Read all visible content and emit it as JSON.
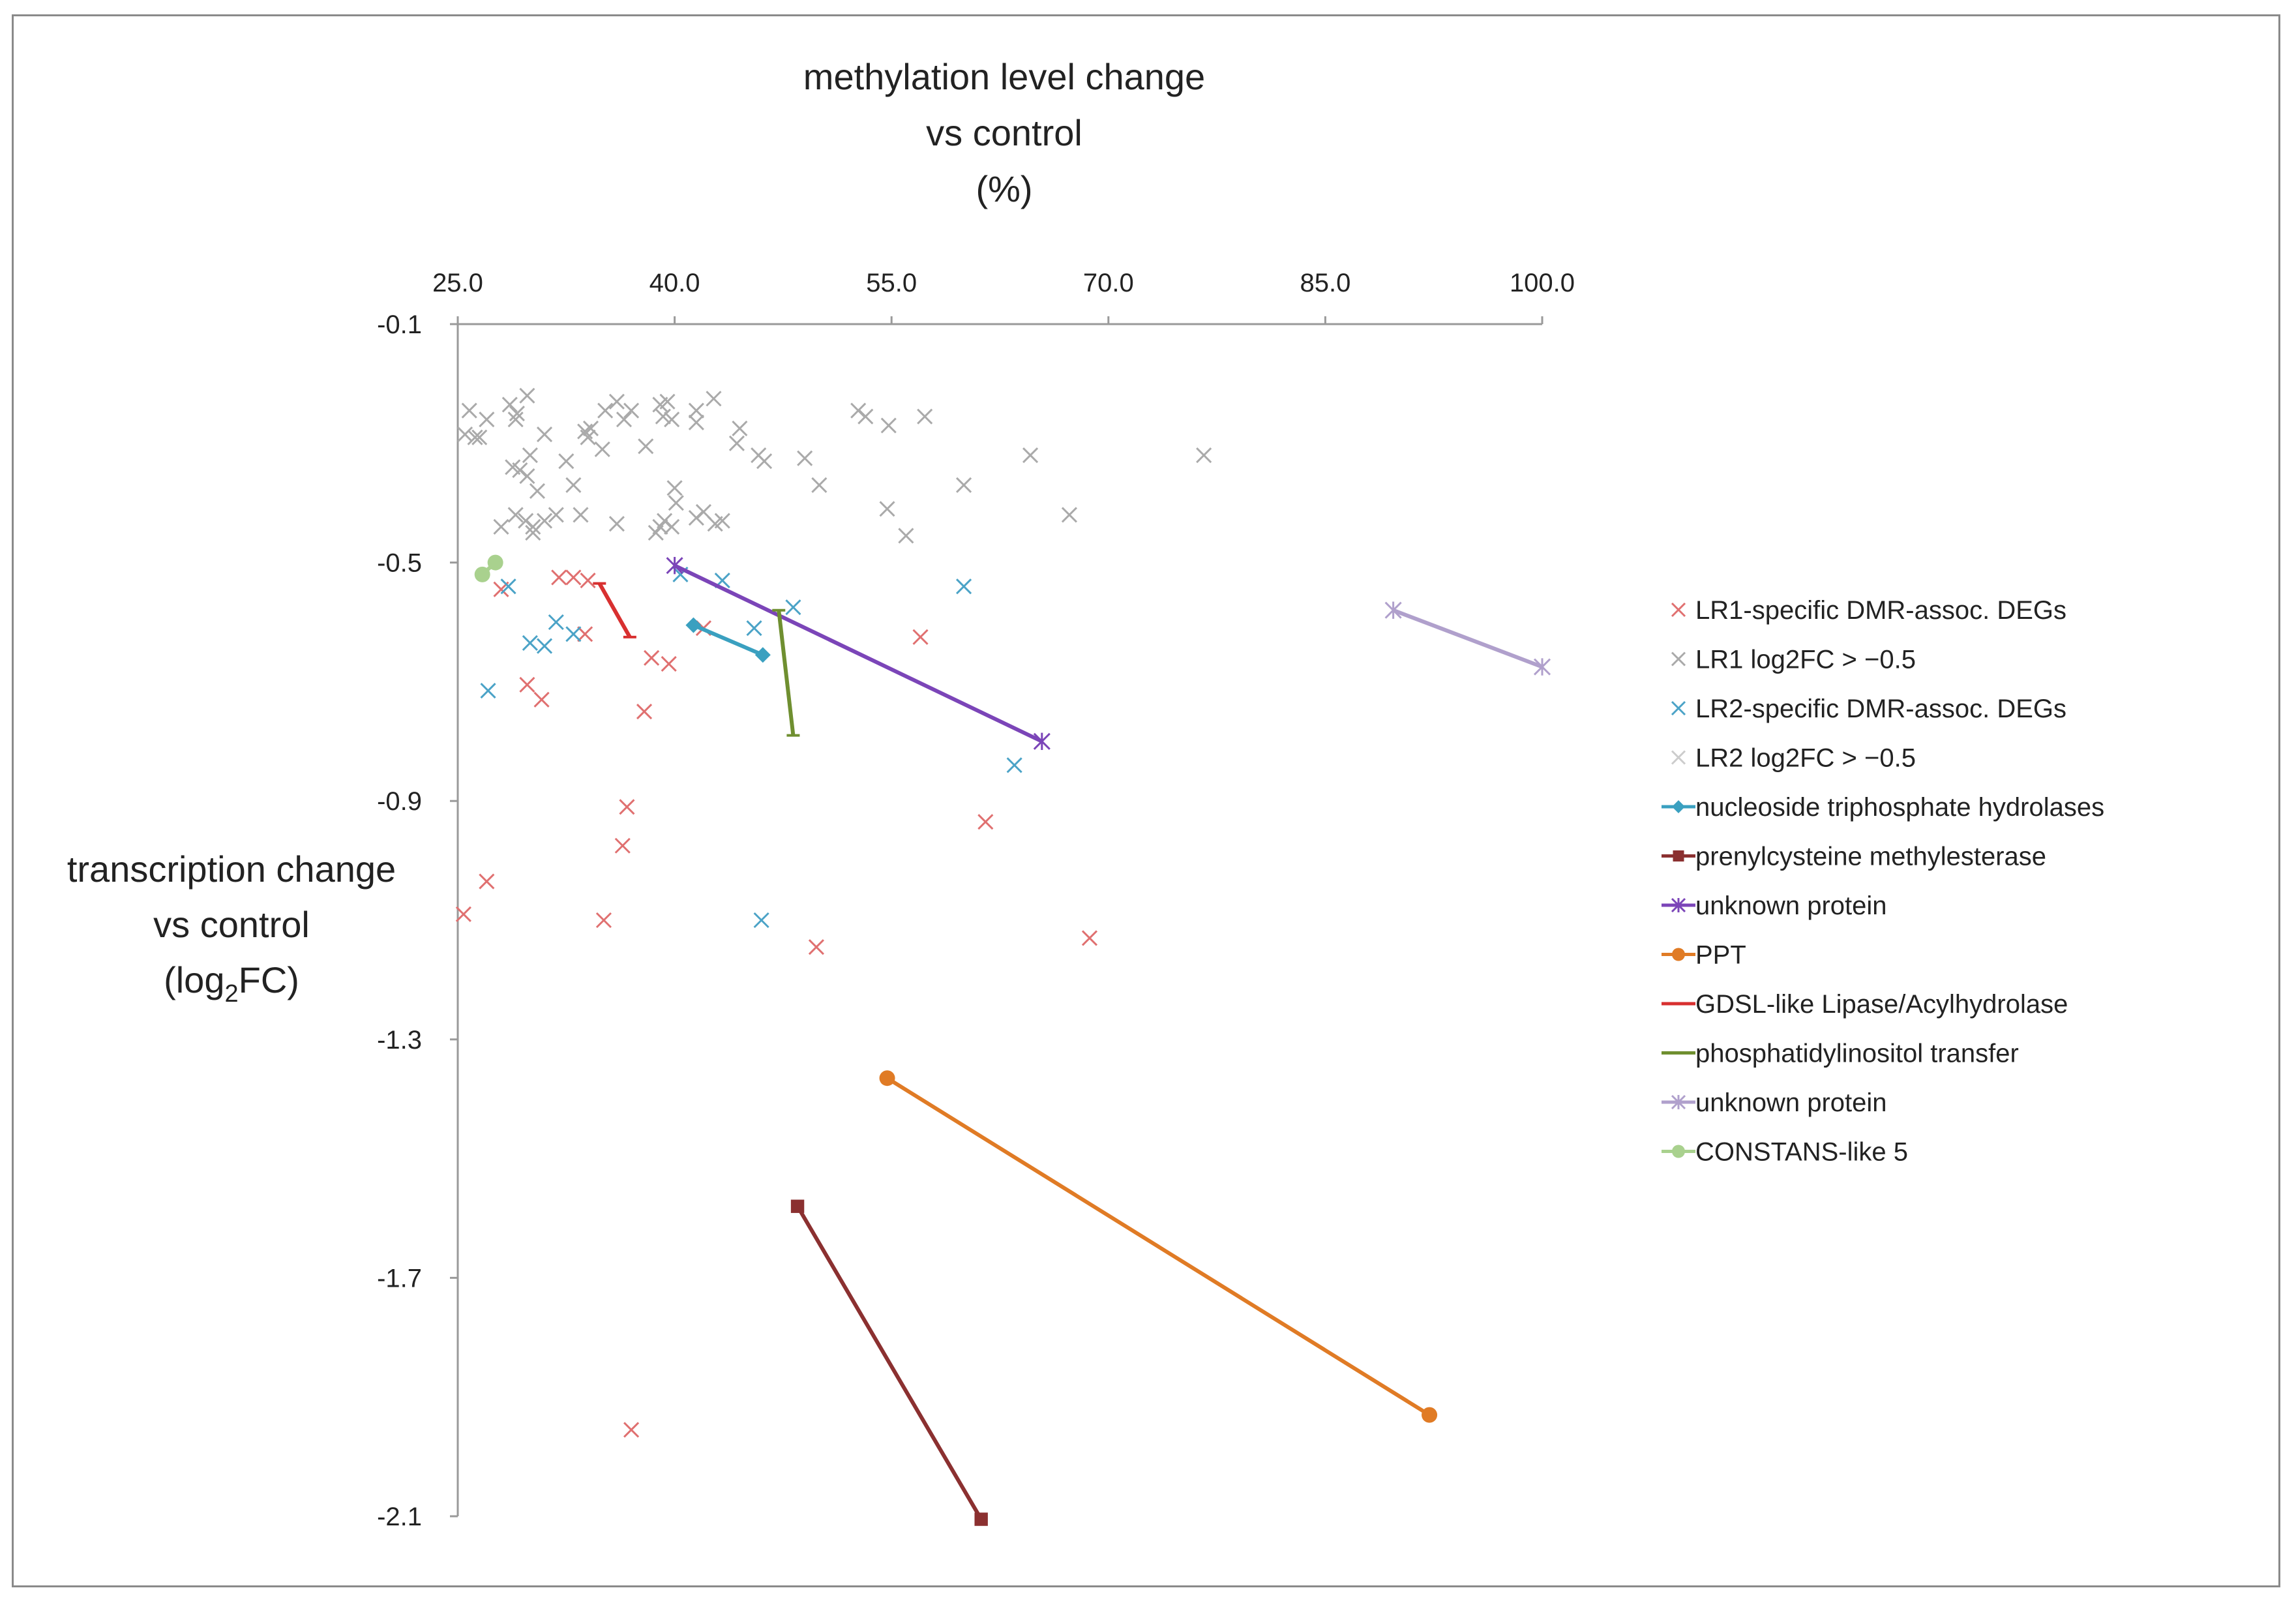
{
  "chart_data": {
    "type": "scatter",
    "title_lines": [
      "methylation level change",
      "vs control",
      "(%)"
    ],
    "ylabel_lines": [
      "transcription change",
      "vs control",
      "(log",
      "2",
      "FC)"
    ],
    "x_axis": {
      "position": "top",
      "min": 25.0,
      "max": 100.0,
      "ticks": [
        25.0,
        40.0,
        55.0,
        70.0,
        85.0,
        100.0
      ],
      "tick_labels": [
        "25.0",
        "40.0",
        "55.0",
        "70.0",
        "85.0",
        "100.0"
      ]
    },
    "y_axis": {
      "min": -2.1,
      "max": -0.1,
      "ticks": [
        -0.1,
        -0.5,
        -0.9,
        -1.3,
        -1.7,
        -2.1
      ],
      "tick_labels": [
        "-0.1",
        "-0.5",
        "-0.9",
        "-1.3",
        "-1.7",
        "-2.1"
      ]
    },
    "legend_position": "right",
    "series": [
      {
        "name": "LR1-specific DMR-assoc. DEGs",
        "marker": "x",
        "color": "#e07070",
        "line": false,
        "x": [
          28.0,
          32.0,
          33.0,
          34.0,
          33.8,
          29.8,
          30.8,
          38.4,
          39.6,
          37.9,
          36.7,
          36.4,
          35.1,
          25.4,
          27.0,
          42.0,
          49.8,
          57.0,
          61.5,
          68.7,
          37.0
        ],
        "y": [
          -0.545,
          -0.525,
          -0.525,
          -0.53,
          -0.62,
          -0.705,
          -0.73,
          -0.66,
          -0.67,
          -0.75,
          -0.91,
          -0.975,
          -1.1,
          -1.09,
          -1.035,
          -0.61,
          -1.145,
          -0.625,
          -0.935,
          -1.13,
          -1.955
        ]
      },
      {
        "name": "LR1 log2FC > −0.5",
        "marker": "x",
        "color": "#aaaaaa",
        "line": false,
        "x": [
          25.8,
          26.5,
          25.5,
          26.2,
          27.0,
          28.6,
          29.1,
          29.8,
          29.0,
          30.0,
          29.3,
          28.8,
          31.0,
          29.0,
          29.7,
          30.2,
          31.0,
          31.8,
          30.5,
          29.8,
          32.5,
          33.0,
          33.5,
          34.0,
          34.2,
          33.8,
          35.0,
          35.2,
          36.0,
          37.0,
          36.5,
          38.0,
          39.0,
          39.5,
          39.2,
          39.8,
          41.5,
          42.7,
          41.5,
          40.0,
          40.1,
          41.5,
          43.3,
          44.5,
          45.8,
          46.2,
          42.0,
          42.8,
          44.3,
          52.7,
          53.2,
          54.8,
          57.3,
          49.0,
          50.0,
          54.7,
          56.0,
          60.0,
          64.6,
          67.3,
          76.6,
          39.3,
          39.8,
          39.0,
          38.7,
          28.0,
          30.2,
          36.0
        ],
        "y": [
          -0.245,
          -0.29,
          -0.285,
          -0.29,
          -0.26,
          -0.235,
          -0.25,
          -0.22,
          -0.26,
          -0.32,
          -0.345,
          -0.34,
          -0.285,
          -0.42,
          -0.43,
          -0.44,
          -0.43,
          -0.42,
          -0.38,
          -0.355,
          -0.33,
          -0.37,
          -0.42,
          -0.29,
          -0.275,
          -0.28,
          -0.31,
          -0.245,
          -0.23,
          -0.245,
          -0.26,
          -0.305,
          -0.235,
          -0.23,
          -0.255,
          -0.26,
          -0.245,
          -0.225,
          -0.265,
          -0.375,
          -0.4,
          -0.425,
          -0.43,
          -0.275,
          -0.32,
          -0.33,
          -0.415,
          -0.435,
          -0.3,
          -0.245,
          -0.255,
          -0.27,
          -0.255,
          -0.325,
          -0.37,
          -0.41,
          -0.455,
          -0.37,
          -0.32,
          -0.42,
          -0.32,
          -0.43,
          -0.44,
          -0.44,
          -0.45,
          -0.44,
          -0.45,
          -0.435
        ]
      },
      {
        "name": "LR2-specific DMR-assoc. DEGs",
        "marker": "x",
        "color": "#4ba3c7",
        "line": false,
        "x": [
          27.1,
          28.5,
          30.0,
          31.0,
          31.8,
          33.0,
          40.4,
          43.3,
          45.5,
          48.2,
          60.0,
          63.5,
          46.0
        ],
        "y": [
          -0.715,
          -0.54,
          -0.635,
          -0.64,
          -0.6,
          -0.62,
          -0.52,
          -0.53,
          -0.61,
          -0.575,
          -0.54,
          -0.84,
          -1.1
        ]
      },
      {
        "name": "LR2 log2FC > −0.5",
        "marker": "x",
        "color": "#cccccc",
        "line": false,
        "x": [],
        "y": []
      },
      {
        "name": "nucleoside triphosphate hydrolases",
        "marker": "diamond",
        "color": "#3aa0c0",
        "line": true,
        "x": [
          41.3,
          46.1
        ],
        "y": [
          -0.605,
          -0.655
        ]
      },
      {
        "name": "prenylcysteine methylesterase",
        "marker": "square",
        "color": "#8b3030",
        "line": true,
        "x": [
          48.5,
          61.2
        ],
        "y": [
          -1.58,
          -2.105
        ]
      },
      {
        "name": "unknown protein",
        "marker": "asterisk",
        "color": "#7b45b8",
        "line": true,
        "x": [
          40.0,
          65.4
        ],
        "y": [
          -0.505,
          -0.8
        ]
      },
      {
        "name": "PPT",
        "marker": "circle",
        "color": "#e07b25",
        "line": true,
        "x": [
          54.7,
          92.2
        ],
        "y": [
          -1.365,
          -1.93
        ]
      },
      {
        "name": "GDSL-like Lipase/Acylhydrolase",
        "marker": "dash",
        "color": "#d83030",
        "line": true,
        "x": [
          34.8,
          36.9
        ],
        "y": [
          -0.535,
          -0.625
        ]
      },
      {
        "name": "phosphatidylinositol transfer",
        "marker": "dash",
        "color": "#6f8f30",
        "line": true,
        "x": [
          47.2,
          48.2
        ],
        "y": [
          -0.58,
          -0.79
        ]
      },
      {
        "name": "unknown protein",
        "marker": "asterisk",
        "color": "#b0a0cc",
        "line": true,
        "x": [
          89.7,
          100.0
        ],
        "y": [
          -0.58,
          -0.675
        ]
      },
      {
        "name": "CONSTANS-like 5",
        "marker": "circle",
        "color": "#a9d18e",
        "line": true,
        "x": [
          26.7,
          27.6
        ],
        "y": [
          -0.52,
          -0.5
        ]
      }
    ]
  }
}
